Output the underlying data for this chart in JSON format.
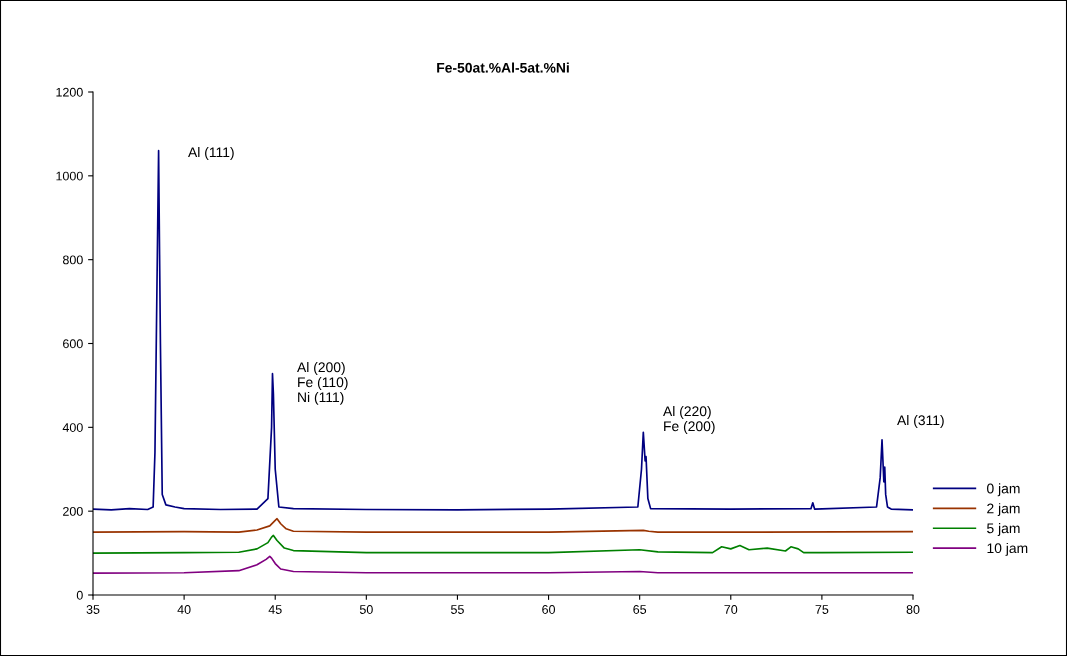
{
  "chart_data": {
    "type": "line",
    "title": "Fe-50at.%Al-5at.%Ni",
    "series": [
      {
        "name": "0 jam",
        "color": "#000080",
        "x": [
          35,
          36,
          37,
          38,
          38.3,
          38.4,
          38.5,
          38.6,
          38.7,
          38.8,
          39,
          39.5,
          40,
          42,
          44,
          44.6,
          44.8,
          44.85,
          44.9,
          45.0,
          45.2,
          46,
          50,
          55,
          60,
          64.9,
          65.1,
          65.2,
          65.3,
          65.35,
          65.45,
          65.6,
          70,
          74.4,
          74.5,
          74.6,
          78.0,
          78.2,
          78.3,
          78.4,
          78.45,
          78.5,
          78.6,
          78.8,
          80
        ],
        "values": [
          205,
          203,
          206,
          204,
          210,
          340,
          700,
          1060,
          600,
          240,
          215,
          210,
          206,
          204,
          205,
          230,
          400,
          528,
          480,
          300,
          210,
          206,
          204,
          203,
          205,
          210,
          300,
          388,
          320,
          330,
          230,
          206,
          205,
          206,
          220,
          205,
          210,
          280,
          370,
          270,
          305,
          240,
          210,
          205,
          203
        ]
      },
      {
        "name": "2 jam",
        "color": "#993300",
        "x": [
          35,
          40,
          43,
          44,
          44.7,
          45.0,
          45.1,
          45.3,
          45.6,
          46,
          50,
          60,
          65.2,
          65.5,
          66,
          70,
          80
        ],
        "values": [
          150,
          151,
          150,
          155,
          165,
          178,
          182,
          170,
          158,
          152,
          150,
          150,
          154,
          152,
          150,
          150,
          151
        ]
      },
      {
        "name": "5 jam",
        "color": "#008000",
        "x": [
          35,
          40,
          43,
          44,
          44.6,
          44.8,
          44.9,
          45.1,
          45.5,
          46,
          50,
          60,
          65,
          66,
          69,
          69.5,
          70,
          70.5,
          71,
          72,
          73,
          73.3,
          73.7,
          74,
          75,
          80
        ],
        "values": [
          100,
          101,
          102,
          110,
          125,
          138,
          142,
          130,
          112,
          106,
          101,
          101,
          108,
          103,
          101,
          115,
          110,
          118,
          108,
          112,
          105,
          115,
          110,
          101,
          101,
          102
        ]
      },
      {
        "name": "10 jam",
        "color": "#800080",
        "x": [
          35,
          40,
          43,
          44,
          44.5,
          44.7,
          44.8,
          45.0,
          45.3,
          46,
          50,
          60,
          65,
          66,
          80
        ],
        "values": [
          52,
          53,
          58,
          72,
          85,
          92,
          88,
          75,
          62,
          56,
          53,
          53,
          56,
          53,
          53
        ]
      }
    ],
    "xlim": [
      35,
      80
    ],
    "xticks": [
      35,
      40,
      45,
      50,
      55,
      60,
      65,
      70,
      75,
      80
    ],
    "ylim": [
      0,
      1200
    ],
    "yticks": [
      0,
      200,
      400,
      600,
      800,
      1000,
      1200
    ],
    "annotations": [
      "Al (111)",
      "Al (200)\nFe (110)\nNi (111)",
      "Al (220)\nFe (200)",
      "Al (311)"
    ],
    "grid": false,
    "legend": "right",
    "marker": "none",
    "line_style": "solid"
  }
}
